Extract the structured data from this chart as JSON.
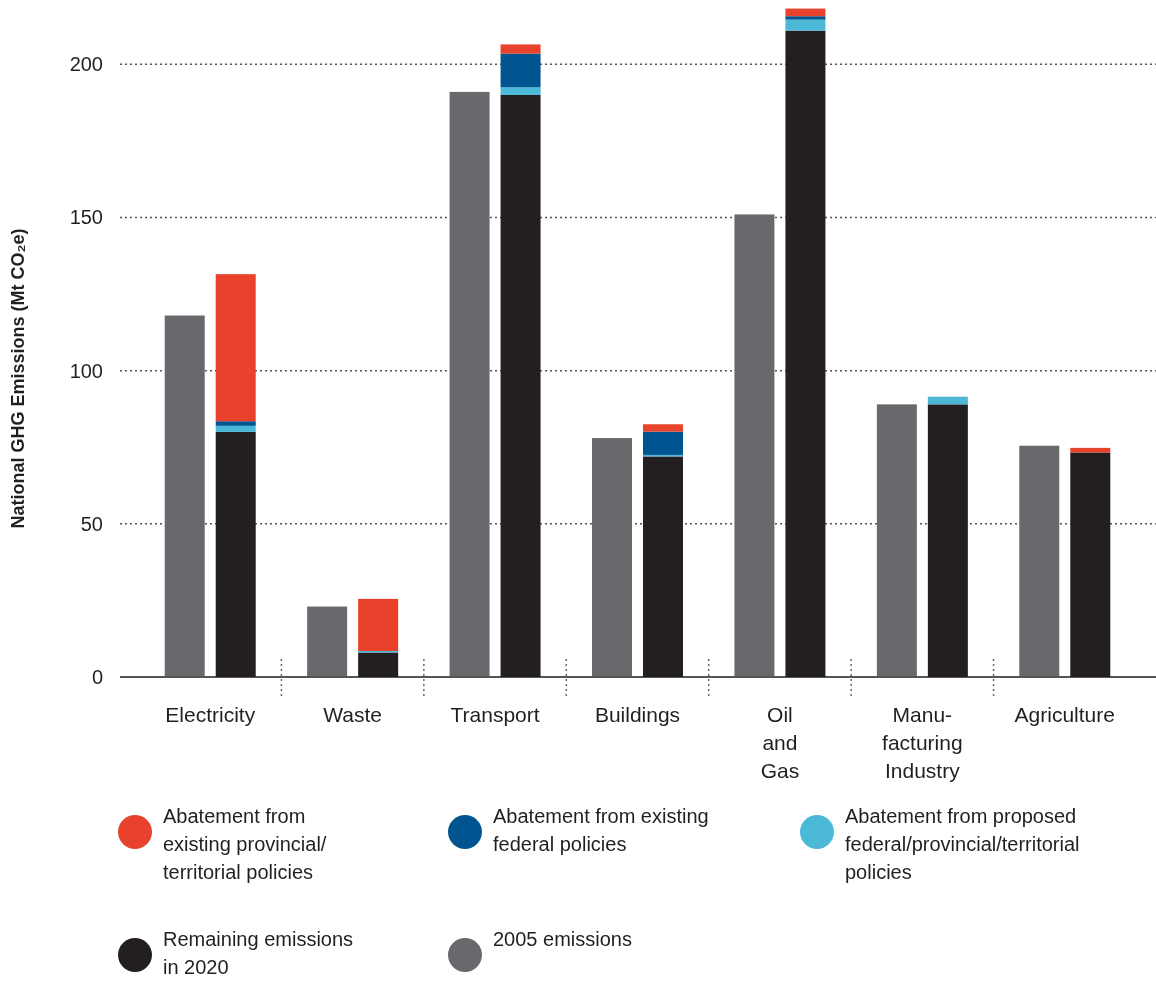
{
  "chart_data": [
    {
      "type": "bar",
      "ylabel": "National GHG Emissions (Mt CO₂e)",
      "categories": [
        "Electricity",
        "Waste",
        "Transport",
        "Buildings",
        "Oil and Gas",
        "Manu-facturing Industry",
        "Agriculture"
      ],
      "series": [
        {
          "name": "2005 emissions",
          "color": "#68696d",
          "values": [
            118,
            23,
            191,
            78,
            151,
            89,
            75.5
          ]
        }
      ],
      "ylim": [
        0,
        221
      ],
      "yticks": [
        0,
        50,
        100,
        150,
        200
      ],
      "grid": "y",
      "legend": "bottom"
    },
    {
      "type": "bar",
      "stacked": true,
      "series": [
        {
          "name": "Remaining emissions in 2020",
          "color": "#231f20",
          "values": [
            80,
            8,
            190,
            72,
            211,
            89,
            73.3
          ]
        },
        {
          "name": "Abatement from proposed federal/provincial/territorial policies",
          "color": "#4bb8d8",
          "values": [
            2,
            0.5,
            2.5,
            0.5,
            3.6,
            2.5,
            null
          ]
        },
        {
          "name": "Abatement from existing federal policies",
          "color": "#005590",
          "values": [
            1.5,
            null,
            11,
            7.6,
            1.1,
            null,
            null
          ]
        },
        {
          "name": "Abatement from existing provincial/ territorial policies",
          "color": "#e8412c",
          "values": [
            48,
            17,
            3,
            2.4,
            2.5,
            null,
            1.5
          ]
        }
      ],
      "ylim": [
        0,
        221
      ],
      "yticks": [
        0,
        50,
        100,
        150,
        200
      ],
      "tick_labels": false,
      "legend": "bottom"
    }
  ]
}
